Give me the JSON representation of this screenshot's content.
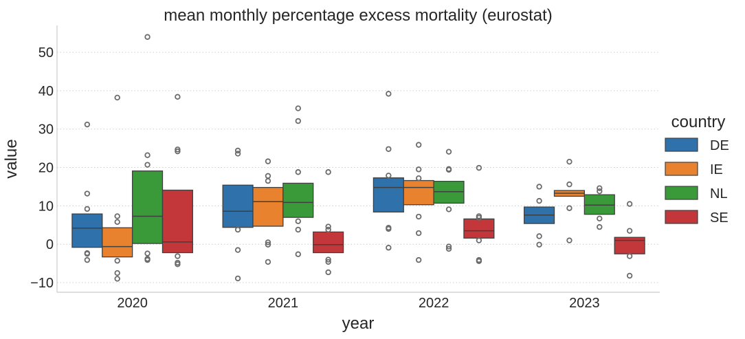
{
  "chart_data": {
    "type": "boxplot",
    "title": "mean monthly percentage excess mortality (eurostat)",
    "xlabel": "year",
    "ylabel": "value",
    "ylim": [
      -12.5,
      57
    ],
    "yticks": [
      -10,
      0,
      10,
      20,
      30,
      40,
      50
    ],
    "ytick_labels": [
      "−10",
      "0",
      "10",
      "20",
      "30",
      "40",
      "50"
    ],
    "categories": [
      "2020",
      "2021",
      "2022",
      "2023"
    ],
    "grid": "y-dotted",
    "legend": {
      "title": "country",
      "placement": "right"
    },
    "series": [
      {
        "name": "DE",
        "color": "#2f72ab",
        "boxes": [
          {
            "q1": -0.8,
            "median": 4.2,
            "q3": 7.9,
            "whisker_low": -0.8,
            "whisker_high": 7.9,
            "outliers": [
              31.2,
              13.2,
              9.2,
              -2.3,
              -2.5,
              -4.1
            ]
          },
          {
            "q1": 4.4,
            "median": 8.6,
            "q3": 15.4,
            "whisker_low": 4.4,
            "whisker_high": 15.4,
            "outliers": [
              24.4,
              23.6,
              3.8,
              -1.5,
              -8.9
            ]
          },
          {
            "q1": 8.4,
            "median": 14.8,
            "q3": 17.3,
            "whisker_low": 8.4,
            "whisker_high": 17.3,
            "outliers": [
              39.2,
              24.8,
              17.9,
              4.3,
              4.0,
              -0.9
            ]
          },
          {
            "q1": 5.4,
            "median": 7.6,
            "q3": 9.7,
            "whisker_low": 5.4,
            "whisker_high": 9.7,
            "outliers": [
              15.0,
              11.3,
              2.1,
              -0.1
            ]
          }
        ]
      },
      {
        "name": "IE",
        "color": "#e9822e",
        "boxes": [
          {
            "q1": -3.3,
            "median": -0.6,
            "q3": 4.3,
            "whisker_low": -3.3,
            "whisker_high": 4.3,
            "outliers": [
              38.2,
              7.3,
              5.8,
              -4.3,
              -7.5,
              -9.0
            ]
          },
          {
            "q1": 4.7,
            "median": 11.1,
            "q3": 14.8,
            "whisker_low": 4.7,
            "whisker_high": 14.8,
            "outliers": [
              21.6,
              17.8,
              16.5,
              0.5,
              -0.1,
              -4.6
            ]
          },
          {
            "q1": 10.3,
            "median": 14.8,
            "q3": 16.6,
            "whisker_low": 10.3,
            "whisker_high": 16.6,
            "outliers": [
              25.9,
              19.5,
              17.2,
              7.2,
              2.9,
              -4.1
            ]
          },
          {
            "q1": 12.5,
            "median": 13.3,
            "q3": 14.0,
            "whisker_low": 12.5,
            "whisker_high": 14.0,
            "outliers": [
              21.5,
              15.6,
              9.4,
              1.0
            ]
          }
        ]
      },
      {
        "name": "NL",
        "color": "#3a9a3a",
        "boxes": [
          {
            "q1": 0.2,
            "median": 7.3,
            "q3": 19.1,
            "whisker_low": 0.2,
            "whisker_high": 19.1,
            "outliers": [
              54.0,
              23.2,
              20.7,
              -2.4,
              -3.8,
              -4.1
            ]
          },
          {
            "q1": 7.0,
            "median": 10.9,
            "q3": 15.9,
            "whisker_low": 7.0,
            "whisker_high": 15.9,
            "outliers": [
              35.4,
              32.1,
              18.8,
              6.0,
              3.8,
              -2.6
            ]
          },
          {
            "q1": 10.7,
            "median": 13.7,
            "q3": 16.4,
            "whisker_low": 10.7,
            "whisker_high": 16.4,
            "outliers": [
              24.1,
              19.6,
              19.4,
              9.1,
              -0.6,
              -1.2
            ]
          },
          {
            "q1": 7.8,
            "median": 10.2,
            "q3": 12.9,
            "whisker_low": 7.8,
            "whisker_high": 12.9,
            "outliers": [
              14.6,
              13.8,
              6.7,
              4.5
            ]
          }
        ]
      },
      {
        "name": "SE",
        "color": "#c3373a",
        "boxes": [
          {
            "q1": -2.2,
            "median": 0.6,
            "q3": 14.1,
            "whisker_low": -2.2,
            "whisker_high": 14.1,
            "outliers": [
              38.4,
              24.7,
              24.2,
              -3.1,
              -4.8,
              -5.2
            ]
          },
          {
            "q1": -2.2,
            "median": -0.1,
            "q3": 3.2,
            "whisker_low": -2.2,
            "whisker_high": 3.2,
            "outliers": [
              18.8,
              4.6,
              3.8,
              -4.0,
              -4.6,
              -7.3
            ]
          },
          {
            "q1": 1.6,
            "median": 3.5,
            "q3": 6.6,
            "whisker_low": 1.6,
            "whisker_high": 6.6,
            "outliers": [
              19.9,
              7.3,
              6.9,
              1.0,
              -4.1,
              -4.4
            ]
          },
          {
            "q1": -2.5,
            "median": 1.0,
            "q3": 1.8,
            "whisker_low": -2.5,
            "whisker_high": 1.8,
            "outliers": [
              10.5,
              3.5,
              -3.1,
              -8.2
            ]
          }
        ]
      }
    ]
  }
}
